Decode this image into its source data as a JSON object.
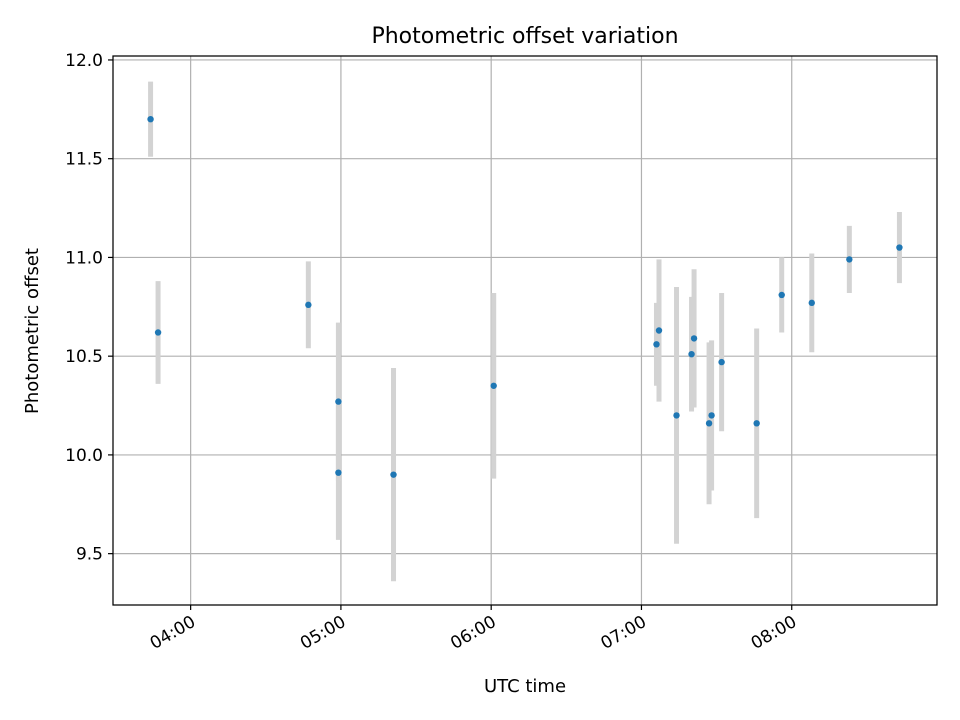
{
  "chart_data": {
    "type": "scatter",
    "title": "Photometric offset variation",
    "xlabel": "UTC time",
    "ylabel": "Photometric offset",
    "x_unit": "UTC time (HH:MM)",
    "xlim": [
      "03:29",
      "08:58"
    ],
    "ylim": [
      9.24,
      12.02
    ],
    "x_ticks": [
      "04:00",
      "05:00",
      "06:00",
      "07:00",
      "08:00"
    ],
    "y_ticks": [
      9.5,
      10.0,
      10.5,
      11.0,
      11.5,
      12.0
    ],
    "y_tick_labels": [
      "9.5",
      "10.0",
      "10.5",
      "11.0",
      "11.5",
      "12.0"
    ],
    "grid": true,
    "legend": "none",
    "colors": {
      "marker": "#1f77b4",
      "errorbar": "#d3d3d3",
      "grid": "#b0b0b0"
    },
    "series": [
      {
        "points": [
          {
            "x": "03:44",
            "y": 11.7,
            "err": 0.19
          },
          {
            "x": "03:47",
            "y": 10.62,
            "err": 0.26
          },
          {
            "x": "04:47",
            "y": 10.76,
            "err": 0.22
          },
          {
            "x": "04:59",
            "y": 10.27,
            "err": 0.4
          },
          {
            "x": "04:59",
            "y": 9.91,
            "err": 0.34
          },
          {
            "x": "05:21",
            "y": 9.9,
            "err": 0.54
          },
          {
            "x": "06:01",
            "y": 10.35,
            "err": 0.47
          },
          {
            "x": "07:06",
            "y": 10.56,
            "err": 0.21
          },
          {
            "x": "07:07",
            "y": 10.63,
            "err": 0.36
          },
          {
            "x": "07:14",
            "y": 10.2,
            "err": 0.65
          },
          {
            "x": "07:20",
            "y": 10.51,
            "err": 0.29
          },
          {
            "x": "07:21",
            "y": 10.59,
            "err": 0.35
          },
          {
            "x": "07:27",
            "y": 10.16,
            "err": 0.41
          },
          {
            "x": "07:28",
            "y": 10.2,
            "err": 0.38
          },
          {
            "x": "07:32",
            "y": 10.47,
            "err": 0.35
          },
          {
            "x": "07:46",
            "y": 10.16,
            "err": 0.48
          },
          {
            "x": "07:56",
            "y": 10.81,
            "err": 0.19
          },
          {
            "x": "08:08",
            "y": 10.77,
            "err": 0.25
          },
          {
            "x": "08:23",
            "y": 10.99,
            "err": 0.17
          },
          {
            "x": "08:43",
            "y": 11.05,
            "err": 0.18
          }
        ]
      }
    ]
  }
}
